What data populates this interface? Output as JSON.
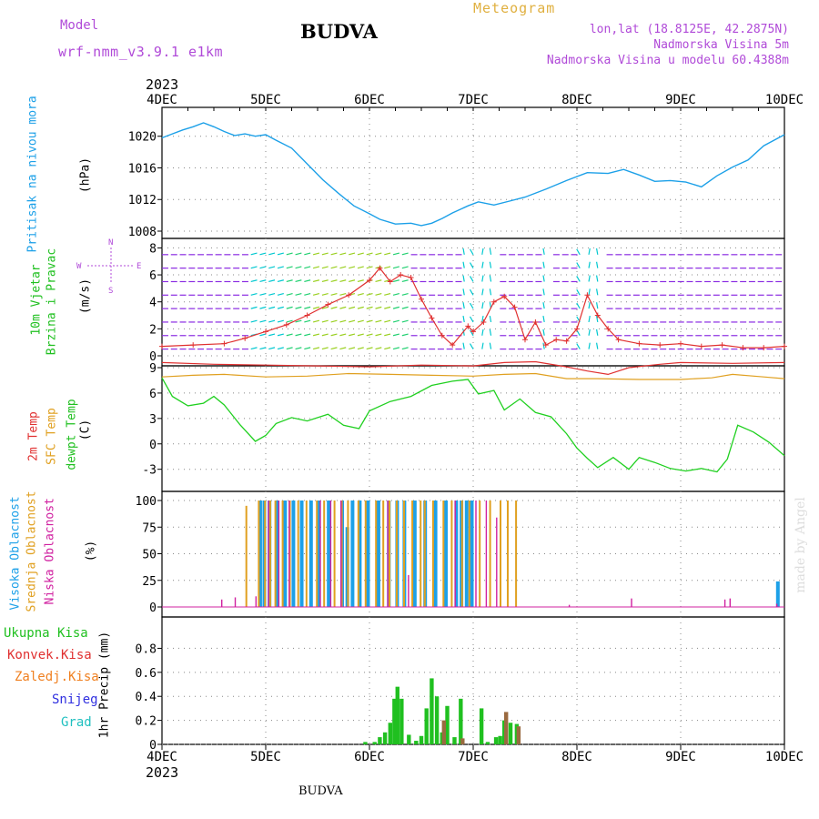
{
  "header": {
    "model_label": "Model",
    "model_name": "wrf-nmm_v3.9.1  e1km",
    "station": "BUDVA",
    "product": "Meteogram",
    "lonlat": "lon,lat (18.8125E, 42.2875N)",
    "altitude": "Nadmorska Visina 5m",
    "model_altitude": "Nadmorska Visina u modelu 60.4388m"
  },
  "footer": {
    "station": "BUDVA",
    "credit": "made by Angel"
  },
  "colors": {
    "model": "#b04ad8",
    "product": "#e0b040",
    "info": "#b04ad8",
    "pressure": "#1ca0e8",
    "temp2m": "#e03030",
    "sfc": "#e0a020",
    "dewpt": "#20d020",
    "cloud_high": "#1ca0e8",
    "cloud_mid": "#e0a020",
    "cloud_low": "#d020a0",
    "precip_total": "#20c020",
    "precip_conv": "#e03030",
    "precip_frozen": "#f08020",
    "precip_snow": "#3030e0",
    "precip_hail": "#20c0c0",
    "wind_speed": "#e03030",
    "credit": "#dddddd"
  },
  "chart_data": [
    {
      "type": "line",
      "panel": "pressure",
      "title": "",
      "ylabel_lines": [
        "Pritisak na nivou mora",
        "(hPa)"
      ],
      "x_ticks": [
        "4DEC",
        "5DEC",
        "6DEC",
        "7DEC",
        "8DEC",
        "9DEC",
        "10DEC"
      ],
      "x_year": "2023",
      "ylim": [
        1008,
        1022.5
      ],
      "y_ticks": [
        1008,
        1012,
        1016,
        1020
      ],
      "grid": true,
      "series": [
        {
          "name": "Pritisak na nivou mora",
          "x_days": [
            0,
            0.1,
            0.2,
            0.3,
            0.4,
            0.5,
            0.6,
            0.7,
            0.8,
            0.9,
            1.0,
            1.1,
            1.25,
            1.4,
            1.55,
            1.7,
            1.85,
            2.0,
            2.1,
            2.25,
            2.4,
            2.5,
            2.6,
            2.7,
            2.8,
            2.95,
            3.05,
            3.2,
            3.35,
            3.5,
            3.7,
            3.9,
            4.1,
            4.3,
            4.45,
            4.6,
            4.75,
            4.9,
            5.05,
            5.2,
            5.35,
            5.5,
            5.65,
            5.8,
            6.0
          ],
          "values": [
            1019.8,
            1020.3,
            1020.8,
            1021.2,
            1021.7,
            1021.2,
            1020.6,
            1020.1,
            1020.3,
            1020.0,
            1020.2,
            1019.5,
            1018.5,
            1016.5,
            1014.5,
            1012.8,
            1011.2,
            1010.2,
            1009.5,
            1008.9,
            1009.0,
            1008.7,
            1009.0,
            1009.6,
            1010.3,
            1011.2,
            1011.7,
            1011.3,
            1011.8,
            1012.3,
            1013.3,
            1014.4,
            1015.4,
            1015.3,
            1015.8,
            1015.1,
            1014.3,
            1014.4,
            1014.2,
            1013.6,
            1015.0,
            1016.1,
            1017.0,
            1018.8,
            1020.2
          ]
        }
      ]
    },
    {
      "type": "line",
      "panel": "wind",
      "ylabel_lines": [
        "10m Vjetar",
        "Brzina i Pravac",
        "(m/s)"
      ],
      "compass": [
        "N",
        "W",
        "E",
        "S"
      ],
      "ylim": [
        0,
        8.5
      ],
      "y_ticks": [
        0,
        2,
        4,
        6,
        8
      ],
      "grid": true,
      "series": [
        {
          "name": "Brzina",
          "x_days": [
            0,
            0.3,
            0.6,
            0.8,
            1.0,
            1.2,
            1.4,
            1.6,
            1.8,
            2.0,
            2.1,
            2.2,
            2.3,
            2.4,
            2.5,
            2.6,
            2.7,
            2.8,
            2.95,
            3.0,
            3.1,
            3.2,
            3.3,
            3.4,
            3.5,
            3.6,
            3.7,
            3.8,
            3.9,
            4.0,
            4.1,
            4.2,
            4.3,
            4.4,
            4.6,
            4.8,
            5.0,
            5.2,
            5.4,
            5.6,
            5.8,
            6.0
          ],
          "values": [
            0.7,
            0.8,
            0.9,
            1.3,
            1.8,
            2.3,
            3.0,
            3.8,
            4.5,
            5.6,
            6.5,
            5.5,
            6.0,
            5.8,
            4.2,
            2.8,
            1.5,
            0.8,
            2.2,
            1.8,
            2.5,
            4.0,
            4.4,
            3.6,
            1.2,
            2.5,
            0.8,
            1.2,
            1.1,
            2.0,
            4.5,
            3.0,
            2.0,
            1.2,
            0.9,
            0.8,
            0.9,
            0.7,
            0.8,
            0.6,
            0.6,
            0.7
          ]
        }
      ]
    },
    {
      "type": "line",
      "panel": "temperature",
      "ylabel_lines": [
        "2m Temp",
        "SFC Temp",
        "dewpt Temp",
        "(C)"
      ],
      "ylim": [
        -4,
        9
      ],
      "y_ticks": [
        -3,
        0,
        3,
        6,
        9
      ],
      "grid": true,
      "series": [
        {
          "name": "2m Temp",
          "x_days": [
            0,
            0.5,
            1.0,
            1.5,
            2.0,
            2.5,
            3.0,
            3.3,
            3.6,
            3.9,
            4.1,
            4.3,
            4.5,
            4.8,
            5.0,
            5.5,
            6.0
          ],
          "values": [
            9.6,
            9.4,
            9.3,
            9.2,
            9.1,
            9.3,
            9.2,
            9.6,
            9.7,
            9.1,
            8.6,
            8.2,
            9.0,
            9.4,
            9.6,
            9.5,
            9.6
          ]
        },
        {
          "name": "SFC Temp",
          "x_days": [
            0,
            0.3,
            0.6,
            1.0,
            1.4,
            1.8,
            2.2,
            2.6,
            3.0,
            3.3,
            3.6,
            3.9,
            4.2,
            4.6,
            5.0,
            5.3,
            5.5,
            5.8,
            6.0
          ],
          "values": [
            7.9,
            8.1,
            8.2,
            7.9,
            8.0,
            8.3,
            8.2,
            8.1,
            8.0,
            8.2,
            8.3,
            7.7,
            7.7,
            7.6,
            7.6,
            7.8,
            8.2,
            7.9,
            7.7
          ]
        },
        {
          "name": "dewpt Temp",
          "x_days": [
            0,
            0.1,
            0.25,
            0.4,
            0.5,
            0.6,
            0.75,
            0.9,
            1.0,
            1.1,
            1.25,
            1.4,
            1.6,
            1.75,
            1.9,
            2.0,
            2.2,
            2.4,
            2.6,
            2.8,
            2.95,
            3.05,
            3.2,
            3.3,
            3.45,
            3.6,
            3.75,
            3.9,
            4.0,
            4.1,
            4.2,
            4.35,
            4.5,
            4.6,
            4.75,
            4.9,
            5.05,
            5.2,
            5.35,
            5.45,
            5.55,
            5.7,
            5.85,
            6.0
          ],
          "values": [
            7.8,
            5.6,
            4.5,
            4.8,
            5.6,
            4.6,
            2.3,
            0.3,
            1.0,
            2.4,
            3.1,
            2.7,
            3.5,
            2.2,
            1.8,
            3.9,
            5.0,
            5.6,
            6.9,
            7.4,
            7.6,
            5.9,
            6.3,
            4.0,
            5.3,
            3.7,
            3.2,
            1.2,
            -0.5,
            -1.7,
            -2.8,
            -1.6,
            -3.0,
            -1.6,
            -2.2,
            -2.9,
            -3.2,
            -2.9,
            -3.3,
            -1.8,
            2.2,
            1.4,
            0.2,
            -1.4
          ]
        }
      ]
    },
    {
      "type": "bar",
      "panel": "clouds",
      "ylabel_lines": [
        "Visoka Oblacnost",
        "Srednja Oblacnost",
        "Niska Oblacnost",
        "(%)"
      ],
      "ylim": [
        0,
        100
      ],
      "y_ticks": [
        0,
        25,
        50,
        75,
        100
      ],
      "grid": true,
      "series": [
        {
          "name": "Visoka Oblacnost",
          "x_days": [
            0.96,
            1.0,
            1.05,
            1.12,
            1.2,
            1.28,
            1.36,
            1.45,
            1.52,
            1.62,
            1.75,
            1.8,
            1.85,
            1.92,
            2.0,
            2.1,
            2.2,
            2.28,
            2.35,
            2.45,
            2.55,
            2.65,
            2.75,
            2.85,
            2.9,
            2.95,
            3.0,
            5.95
          ],
          "values": [
            100,
            100,
            100,
            100,
            100,
            100,
            100,
            100,
            100,
            100,
            100,
            75,
            100,
            100,
            100,
            100,
            100,
            100,
            100,
            100,
            100,
            100,
            100,
            100,
            100,
            100,
            100,
            24
          ]
        },
        {
          "name": "Srednja Oblacnost",
          "x_days": [
            0.8,
            0.92,
            0.98,
            1.03,
            1.08,
            1.15,
            1.22,
            1.3,
            1.38,
            1.48,
            1.55,
            1.65,
            1.72,
            1.78,
            1.88,
            1.95,
            2.05,
            2.12,
            2.18,
            2.25,
            2.32,
            2.4,
            2.48,
            2.52,
            2.6,
            2.7,
            2.78,
            2.88,
            2.95,
            3.05,
            3.15,
            3.25,
            3.32,
            3.4
          ],
          "values": [
            95,
            100,
            100,
            100,
            100,
            100,
            100,
            100,
            100,
            100,
            100,
            100,
            100,
            100,
            100,
            100,
            100,
            100,
            100,
            100,
            100,
            100,
            100,
            100,
            100,
            100,
            100,
            100,
            100,
            100,
            100,
            100,
            100,
            100
          ]
        },
        {
          "name": "Niska Oblacnost",
          "x_days": [
            0.55,
            0.68,
            0.88,
            1.0,
            1.1,
            1.2,
            1.5,
            1.6,
            1.7,
            2.15,
            2.35,
            2.8,
            3.0,
            3.1,
            3.2,
            3.9,
            4.5,
            5.4,
            5.45,
            5.9
          ],
          "values": [
            7,
            9,
            10,
            100,
            100,
            100,
            100,
            100,
            100,
            100,
            30,
            100,
            100,
            100,
            84,
            2,
            8,
            7,
            8,
            3
          ]
        }
      ]
    },
    {
      "type": "bar",
      "panel": "precip",
      "ylabel_lines": [
        "1hr Precip (mm)"
      ],
      "legend": [
        "Ukupna Kisa",
        "Konvek.Kisa",
        "Zaledj.Kisa",
        "Snijeg",
        "Grad"
      ],
      "ylim": [
        0,
        0.97
      ],
      "y_ticks": [
        0,
        0.2,
        0.4,
        0.6,
        0.8
      ],
      "grid": true,
      "series": [
        {
          "name": "Ukupna Kisa",
          "x_days": [
            1.96,
            2.05,
            2.1,
            2.15,
            2.2,
            2.24,
            2.27,
            2.31,
            2.38,
            2.45,
            2.5,
            2.55,
            2.6,
            2.65,
            2.7,
            2.75,
            2.82,
            2.88,
            3.08,
            3.14,
            3.22,
            3.26,
            3.3,
            3.36,
            3.42
          ],
          "values": [
            0.02,
            0.02,
            0.06,
            0.1,
            0.18,
            0.38,
            0.48,
            0.38,
            0.08,
            0.03,
            0.07,
            0.3,
            0.55,
            0.4,
            0.1,
            0.32,
            0.06,
            0.38,
            0.3,
            0.02,
            0.06,
            0.07,
            0.2,
            0.18,
            0.17
          ]
        },
        {
          "name": "Konvek.Kisa",
          "x_days": [
            2.7,
            2.88,
            3.3,
            3.42
          ],
          "values": [
            0.2,
            0.05,
            0.27,
            0.15
          ]
        }
      ]
    }
  ]
}
